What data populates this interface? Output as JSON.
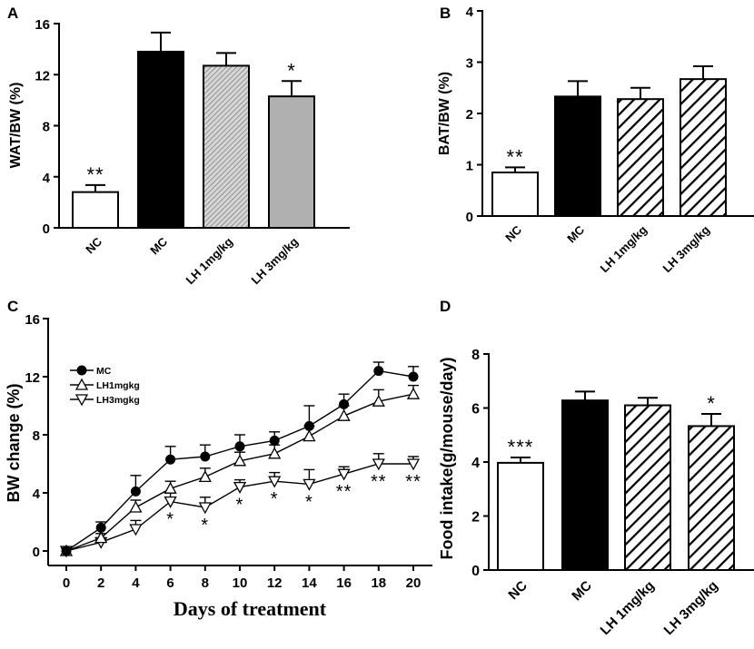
{
  "chart_data": [
    {
      "panel": "A",
      "type": "bar",
      "ylabel": "WAT/BW (%)",
      "ylim": [
        0,
        16
      ],
      "yticks": [
        0,
        4,
        8,
        12,
        16
      ],
      "categories": [
        "NC",
        "MC",
        "LH 1mg/kg",
        "LH 3mg/kg"
      ],
      "values": [
        2.8,
        13.8,
        12.7,
        10.3
      ],
      "errors": [
        0.55,
        1.5,
        1.0,
        1.2
      ],
      "fills": [
        "white",
        "black",
        "hatch-gray-light",
        "gray"
      ],
      "annotations": [
        "**",
        "",
        "",
        "*"
      ]
    },
    {
      "panel": "B",
      "type": "bar",
      "ylabel": "BAT/BW (%)",
      "ylim": [
        0,
        4
      ],
      "yticks": [
        0,
        1,
        2,
        3,
        4
      ],
      "categories": [
        "NC",
        "MC",
        "LH 1mg/kg",
        "LH 3mg/kg"
      ],
      "values": [
        0.85,
        2.33,
        2.28,
        2.67
      ],
      "errors": [
        0.1,
        0.3,
        0.22,
        0.25
      ],
      "fills": [
        "white",
        "black",
        "hatch-bold",
        "hatch-bold"
      ],
      "annotations": [
        "**",
        "",
        "",
        ""
      ]
    },
    {
      "panel": "C",
      "type": "line",
      "xlabel": "Days of treatment",
      "ylabel": "BW change (%)",
      "xlim": [
        -1,
        21
      ],
      "ylim": [
        -1,
        16
      ],
      "xticks": [
        0,
        2,
        4,
        6,
        8,
        10,
        12,
        14,
        16,
        18,
        20
      ],
      "yticks": [
        0,
        4,
        8,
        12,
        16
      ],
      "x": [
        0,
        2,
        4,
        6,
        8,
        10,
        12,
        14,
        16,
        18,
        20
      ],
      "series": [
        {
          "name": "MC",
          "marker": "circle",
          "values": [
            0,
            1.6,
            4.1,
            6.3,
            6.5,
            7.2,
            7.6,
            8.6,
            10.1,
            12.4,
            12.0
          ],
          "errors": [
            0.2,
            0.4,
            1.1,
            0.9,
            0.8,
            0.8,
            0.6,
            1.4,
            0.7,
            0.6,
            0.7
          ]
        },
        {
          "name": "LH1mgkg",
          "marker": "triangle-up",
          "values": [
            0,
            0.9,
            3.0,
            4.3,
            5.1,
            6.2,
            6.7,
            7.9,
            9.3,
            10.3,
            10.8
          ],
          "errors": [
            0.2,
            0.3,
            0.5,
            0.5,
            0.6,
            0.6,
            0.6,
            0.7,
            0.7,
            0.8,
            0.6
          ]
        },
        {
          "name": "LH3mgkg",
          "marker": "triangle-down",
          "values": [
            0,
            0.6,
            1.5,
            3.4,
            3.0,
            4.4,
            4.8,
            4.6,
            5.3,
            6.0,
            6.0
          ],
          "errors": [
            0.2,
            0.3,
            0.6,
            0.6,
            0.7,
            0.5,
            0.6,
            1.0,
            0.5,
            0.7,
            0.5
          ]
        }
      ],
      "annotations": [
        {
          "x": 6,
          "text": "*"
        },
        {
          "x": 8,
          "text": "*"
        },
        {
          "x": 10,
          "text": "*"
        },
        {
          "x": 12,
          "text": "*"
        },
        {
          "x": 14,
          "text": "*"
        },
        {
          "x": 16,
          "text": "**"
        },
        {
          "x": 18,
          "text": "**"
        },
        {
          "x": 20,
          "text": "**"
        }
      ]
    },
    {
      "panel": "D",
      "type": "bar",
      "ylabel": "Food intake(g/mouse/day)",
      "ylim": [
        0,
        8
      ],
      "yticks": [
        0,
        2,
        4,
        6,
        8
      ],
      "categories": [
        "NC",
        "MC",
        "LH 1mg/kg",
        "LH 3mg/kg"
      ],
      "values": [
        3.97,
        6.28,
        6.1,
        5.33
      ],
      "errors": [
        0.2,
        0.33,
        0.28,
        0.45
      ],
      "fills": [
        "white",
        "black",
        "hatch-bold",
        "hatch-bold"
      ],
      "annotations": [
        "***",
        "",
        "",
        "*"
      ]
    }
  ],
  "panel_letters": [
    "A",
    "B",
    "C",
    "D"
  ],
  "colors": {
    "ink": "#000000",
    "gray_fill": "#b0b0b0",
    "hatch_light_bg": "#d6d6d6"
  }
}
